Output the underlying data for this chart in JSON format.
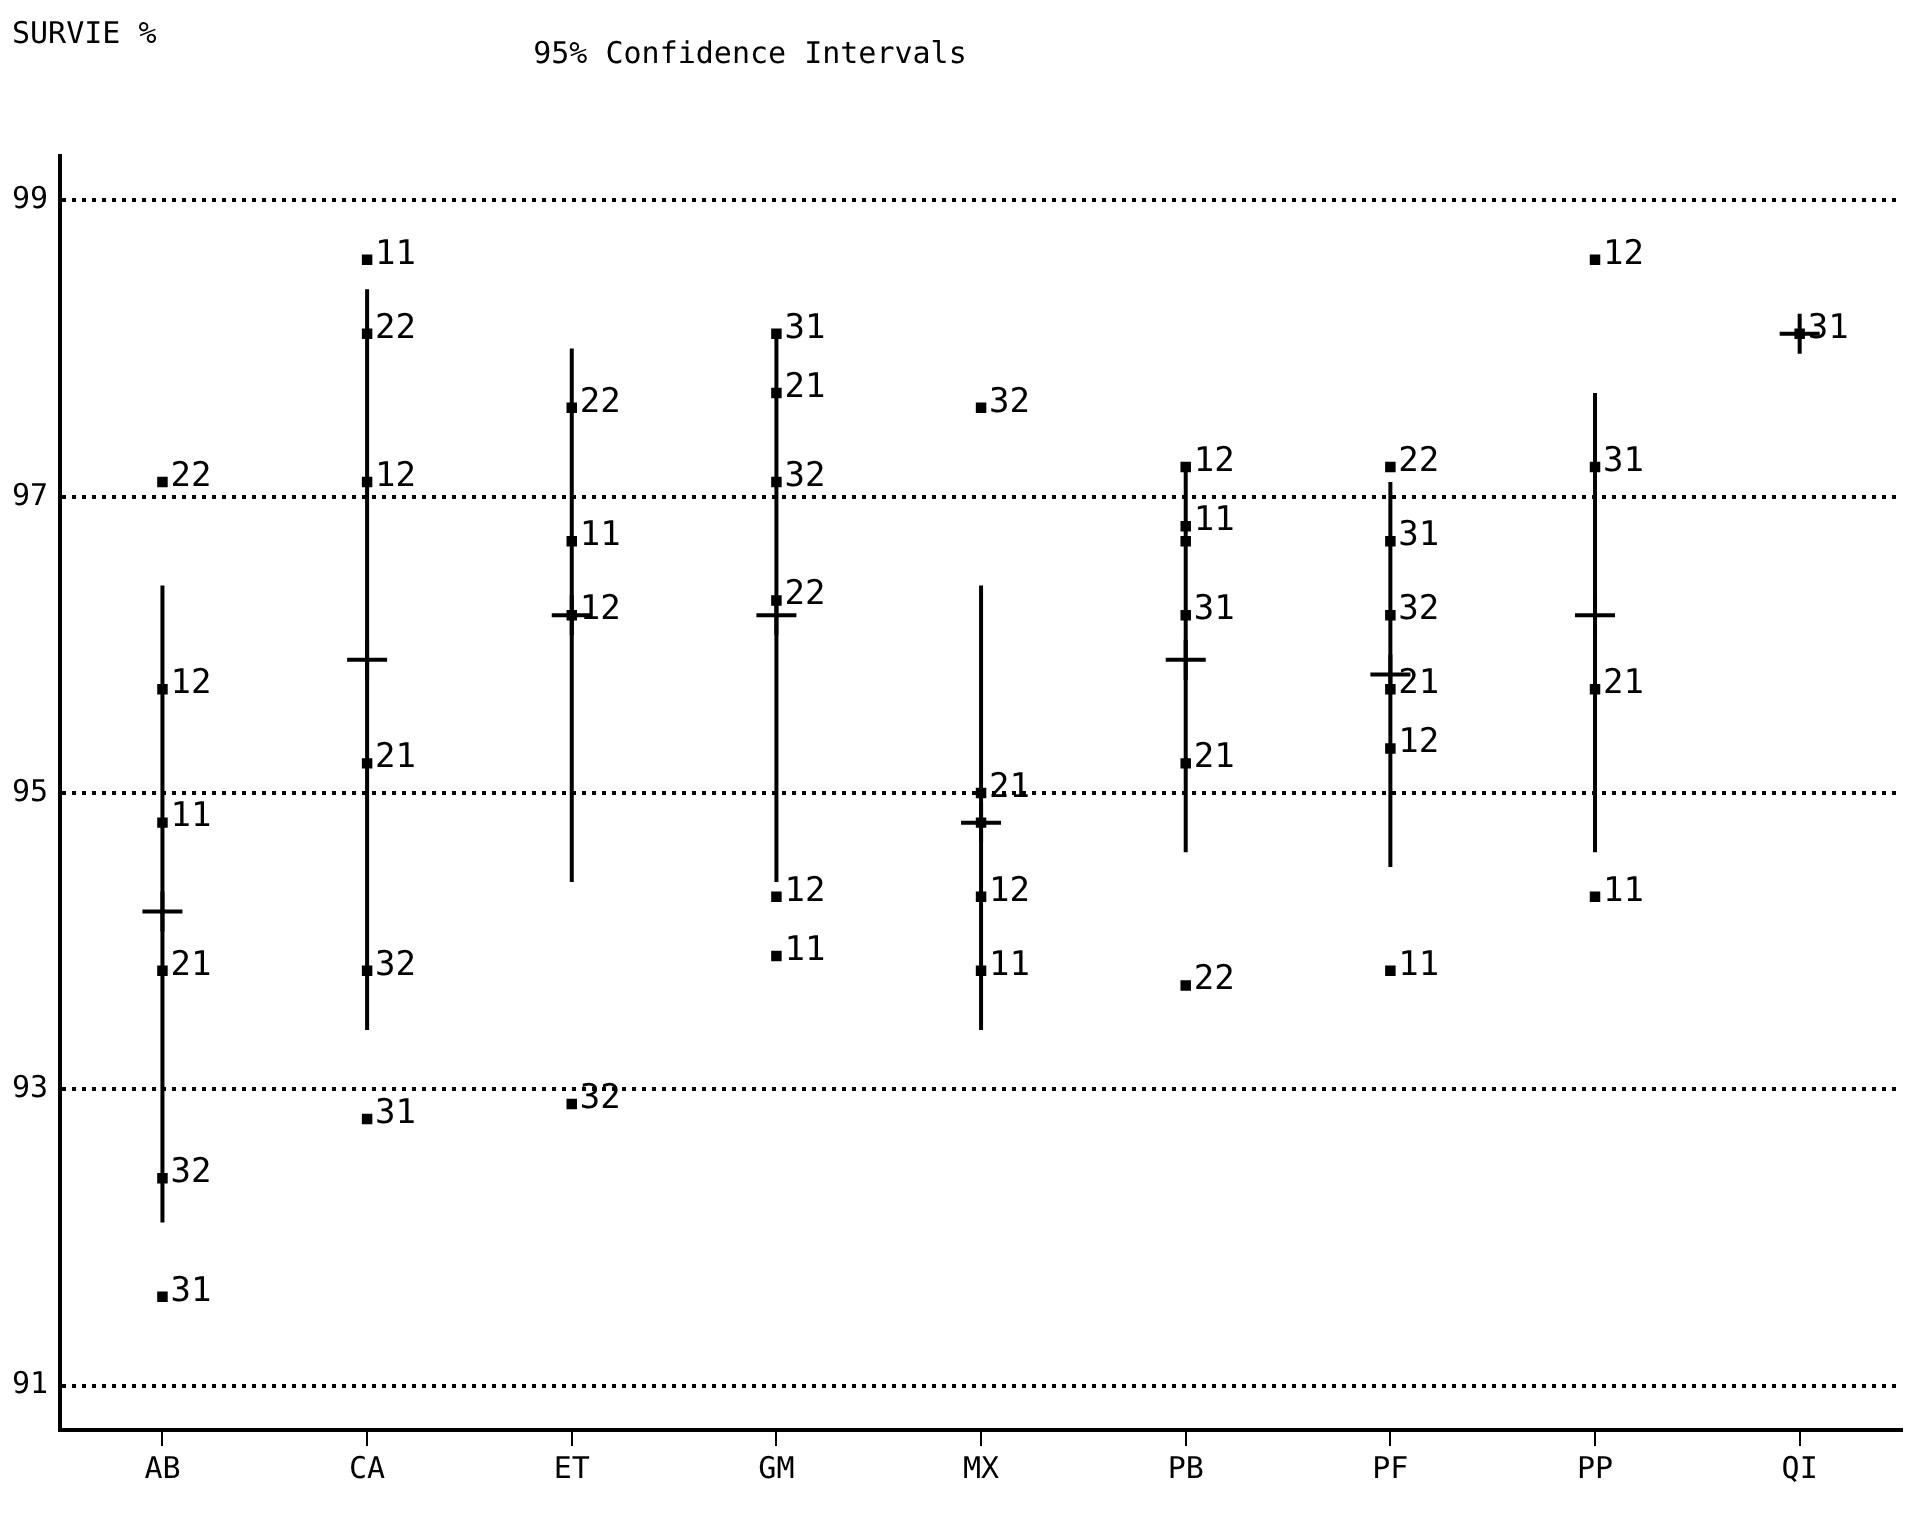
{
  "chart_data": {
    "type": "scatter",
    "title": "95% Confidence Intervals",
    "ylabel": "SURVIE %",
    "categories": [
      "AB",
      "CA",
      "ET",
      "GM",
      "MX",
      "PB",
      "PF",
      "PP",
      "QI"
    ],
    "ylim": [
      90.7,
      99.3
    ],
    "yticks": [
      91,
      93,
      95,
      97,
      99
    ],
    "grid": "y",
    "line_style": "dotted",
    "legend": false,
    "series": [
      {
        "name": "11",
        "type": "scatter",
        "color": "#000000",
        "marker": "square",
        "x": [
          "AB",
          "CA",
          "ET",
          "GM",
          "MX",
          "PB",
          "PF",
          "PP"
        ],
        "values": [
          94.8,
          98.6,
          96.7,
          93.9,
          93.8,
          96.8,
          93.8,
          94.3
        ]
      },
      {
        "name": "12",
        "type": "scatter",
        "color": "#000000",
        "marker": "square",
        "x": [
          "AB",
          "CA",
          "ET",
          "GM",
          "MX",
          "PB",
          "PF",
          "PP"
        ],
        "values": [
          95.7,
          97.1,
          96.2,
          94.3,
          94.3,
          97.2,
          95.3,
          98.6
        ]
      },
      {
        "name": "21",
        "type": "scatter",
        "color": "#000000",
        "marker": "square",
        "x": [
          "AB",
          "CA",
          "GM",
          "MX",
          "PB",
          "PF",
          "PP"
        ],
        "values": [
          93.8,
          95.2,
          97.7,
          95.0,
          95.2,
          95.7,
          95.7
        ]
      },
      {
        "name": "22",
        "type": "scatter",
        "color": "#000000",
        "marker": "square",
        "x": [
          "AB",
          "CA",
          "ET",
          "GM",
          "PB",
          "PF"
        ],
        "values": [
          97.1,
          98.1,
          97.6,
          96.3,
          93.7,
          97.2
        ]
      },
      {
        "name": "31",
        "type": "scatter",
        "color": "#000000",
        "marker": "square",
        "x": [
          "AB",
          "CA",
          "GM",
          "PB",
          "PF",
          "PP",
          "QI"
        ],
        "values": [
          91.6,
          92.8,
          98.1,
          96.2,
          96.7,
          97.2,
          98.1
        ]
      },
      {
        "name": "32",
        "type": "scatter",
        "color": "#000000",
        "marker": "square",
        "x": [
          "AB",
          "CA",
          "ET",
          "GM",
          "MX",
          "PF"
        ],
        "values": [
          92.4,
          93.8,
          92.9,
          97.1,
          97.6,
          96.2
        ]
      },
      {
        "type": "scatter",
        "color": "#000000",
        "marker": "square",
        "x": [
          "MX",
          "PB"
        ],
        "values": [
          94.8,
          96.7
        ]
      },
      {
        "type": "scatter",
        "color": "#000000",
        "marker": "cross",
        "x": [
          "AB",
          "CA",
          "ET",
          "GM",
          "MX",
          "PB",
          "PF",
          "PP",
          "QI"
        ],
        "values": [
          94.2,
          95.9,
          96.2,
          96.2,
          94.8,
          95.9,
          95.8,
          96.2,
          98.1
        ],
        "errors": [
          [
            92.1,
            96.4
          ],
          [
            93.4,
            98.4
          ],
          [
            94.4,
            98.0
          ],
          [
            94.4,
            98.1
          ],
          [
            93.4,
            96.4
          ],
          [
            94.6,
            97.2
          ],
          [
            94.5,
            97.1
          ],
          [
            94.6,
            97.7
          ],
          null
        ]
      }
    ]
  }
}
